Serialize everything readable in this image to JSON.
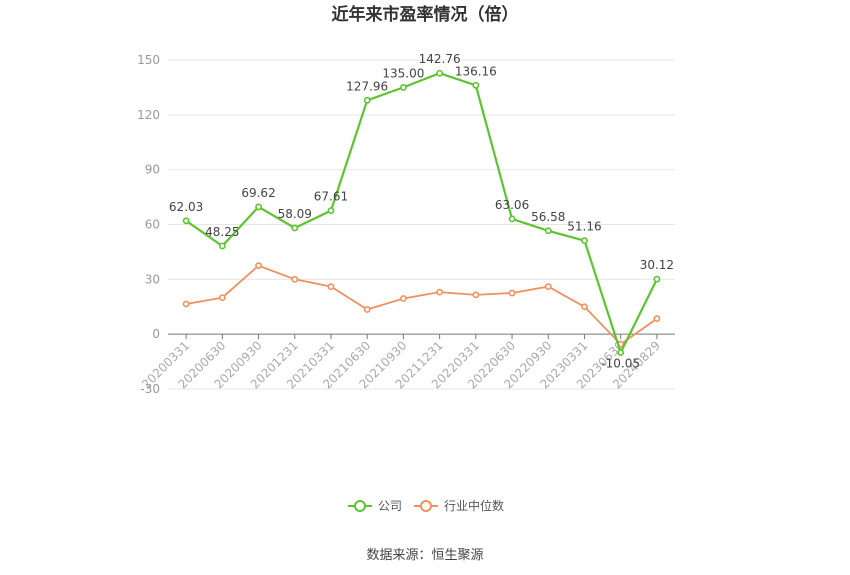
{
  "chart_data": {
    "type": "line",
    "title": "近年来市盈率情况（倍）",
    "categories": [
      "20200331",
      "20200630",
      "20200930",
      "20201231",
      "20210331",
      "20210630",
      "20210930",
      "20211231",
      "20220331",
      "20220630",
      "20220930",
      "20230331",
      "20230630",
      "20240829"
    ],
    "series": [
      {
        "name": "公司",
        "color": "#5cc42f",
        "values": [
          62.03,
          48.25,
          69.62,
          58.09,
          67.61,
          127.96,
          135.0,
          142.76,
          136.16,
          63.06,
          56.58,
          51.16,
          -10.05,
          30.12
        ],
        "labels": [
          "62.03",
          "48.25",
          "69.62",
          "58.09",
          "67.61",
          "127.96",
          "135.00",
          "142.76",
          "136.16",
          "63.06",
          "56.58",
          "51.16",
          "-10.05",
          "30.12"
        ]
      },
      {
        "name": "行业中位数",
        "color": "#f0905c",
        "values": [
          16.5,
          20.0,
          37.5,
          30.0,
          26.0,
          13.5,
          19.5,
          23.0,
          21.5,
          22.5,
          26.0,
          15.0,
          -5.5,
          8.5
        ]
      }
    ],
    "yticks": [
      "150",
      "120",
      "90",
      "60",
      "30",
      "0",
      "-30"
    ],
    "ylim": [
      -30,
      150
    ],
    "grid": true,
    "legend": "bottom-center"
  },
  "source_text": "数据来源：恒生聚源"
}
